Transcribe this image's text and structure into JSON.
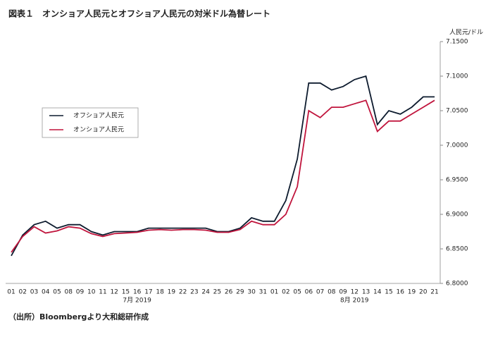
{
  "chart_data": {
    "type": "line",
    "title": "図表１　オンショア人民元とオフショア人民元の対米ドル為替レート",
    "y_axis_label": "人民元/ドル",
    "source": "（出所）Bloombergより大和総研作成",
    "months": [
      "7月 2019",
      "8月 2019"
    ],
    "categories": [
      "01",
      "02",
      "03",
      "04",
      "05",
      "08",
      "09",
      "10",
      "11",
      "12",
      "15",
      "16",
      "17",
      "18",
      "19",
      "22",
      "23",
      "24",
      "25",
      "26",
      "29",
      "30",
      "31",
      "01",
      "02",
      "05",
      "06",
      "07",
      "08",
      "09",
      "12",
      "13",
      "14",
      "15",
      "16",
      "19",
      "20",
      "21"
    ],
    "series": [
      {
        "name": "オフショア人民元",
        "color": "#0d1b2e",
        "values": [
          6.84,
          6.87,
          6.885,
          6.89,
          6.88,
          6.885,
          6.885,
          6.875,
          6.87,
          6.875,
          6.875,
          6.875,
          6.88,
          6.88,
          6.88,
          6.88,
          6.88,
          6.88,
          6.875,
          6.875,
          6.88,
          6.895,
          6.89,
          6.89,
          6.92,
          6.98,
          7.09,
          7.09,
          7.08,
          7.085,
          7.095,
          7.1,
          7.03,
          7.05,
          7.045,
          7.055,
          7.07,
          7.07
        ]
      },
      {
        "name": "オンショア人民元",
        "color": "#c0143c",
        "values": [
          6.845,
          6.868,
          6.882,
          6.873,
          6.876,
          6.882,
          6.88,
          6.872,
          6.868,
          6.872,
          6.873,
          6.874,
          6.877,
          6.878,
          6.877,
          6.878,
          6.878,
          6.877,
          6.874,
          6.874,
          6.878,
          6.89,
          6.885,
          6.885,
          6.9,
          6.94,
          7.05,
          7.04,
          7.055,
          7.055,
          7.06,
          7.065,
          7.02,
          7.035,
          7.035,
          7.045,
          7.055,
          7.065
        ]
      }
    ],
    "ylim": [
      6.8,
      7.15
    ],
    "yticks": [
      {
        "value": 6.8,
        "label": "6.8000"
      },
      {
        "value": 6.85,
        "label": "6.8500"
      },
      {
        "value": 6.9,
        "label": "6.9000"
      },
      {
        "value": 6.95,
        "label": "6.9500"
      },
      {
        "value": 7.0,
        "label": "7.0000"
      },
      {
        "value": 7.05,
        "label": "7.0500"
      },
      {
        "value": 7.1,
        "label": "7.1000"
      },
      {
        "value": 7.15,
        "label": "7.1500"
      }
    ],
    "grid": false
  }
}
